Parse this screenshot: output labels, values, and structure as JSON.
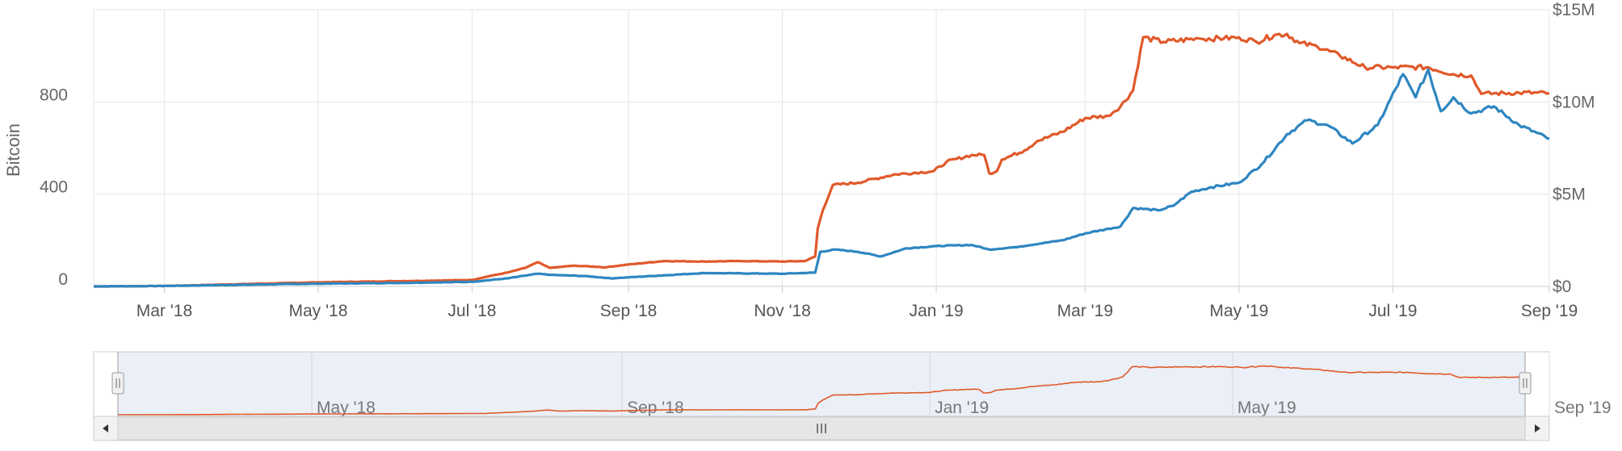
{
  "chart_data": {
    "type": "line",
    "y_left": {
      "label": "Bitcoin",
      "min": 0,
      "max": 1200,
      "ticks": [
        "0",
        "400",
        "800"
      ],
      "tick_values": [
        0,
        400,
        800
      ]
    },
    "y_right": {
      "min": 0,
      "max": 15000000,
      "ticks": [
        "$0",
        "$5M",
        "$10M",
        "$15M"
      ],
      "tick_values": [
        0,
        5000000,
        10000000,
        15000000
      ]
    },
    "x_range": [
      "2018-02-01",
      "2019-09-01"
    ],
    "x_ticks": [
      {
        "label": "Mar '18",
        "date": "2018-03-01"
      },
      {
        "label": "May '18",
        "date": "2018-05-01"
      },
      {
        "label": "Jul '18",
        "date": "2018-07-01"
      },
      {
        "label": "Sep '18",
        "date": "2018-09-01"
      },
      {
        "label": "Nov '18",
        "date": "2018-11-01"
      },
      {
        "label": "Jan '19",
        "date": "2019-01-01"
      },
      {
        "label": "Mar '19",
        "date": "2019-03-01"
      },
      {
        "label": "May '19",
        "date": "2019-05-01"
      },
      {
        "label": "Jul '19",
        "date": "2019-07-01"
      },
      {
        "label": "Sep '19",
        "date": "2019-09-01"
      }
    ],
    "grid": true,
    "legend": "none",
    "series": [
      {
        "axis": "left",
        "color": "#e0592a",
        "points": [
          [
            "2018-02-01",
            0
          ],
          [
            "2018-03-01",
            2
          ],
          [
            "2018-04-01",
            10
          ],
          [
            "2018-05-01",
            18
          ],
          [
            "2018-05-15",
            20
          ],
          [
            "2018-06-15",
            25
          ],
          [
            "2018-07-01",
            28
          ],
          [
            "2018-07-08",
            45
          ],
          [
            "2018-07-15",
            60
          ],
          [
            "2018-07-22",
            80
          ],
          [
            "2018-07-27",
            105
          ],
          [
            "2018-07-30",
            90
          ],
          [
            "2018-08-01",
            80
          ],
          [
            "2018-08-10",
            90
          ],
          [
            "2018-08-20",
            85
          ],
          [
            "2018-08-22",
            82
          ],
          [
            "2018-09-01",
            95
          ],
          [
            "2018-09-15",
            110
          ],
          [
            "2018-10-01",
            108
          ],
          [
            "2018-10-15",
            110
          ],
          [
            "2018-11-01",
            108
          ],
          [
            "2018-11-10",
            110
          ],
          [
            "2018-11-14",
            130
          ],
          [
            "2018-11-15",
            250
          ],
          [
            "2018-11-17",
            330
          ],
          [
            "2018-11-21",
            440
          ],
          [
            "2018-12-01",
            450
          ],
          [
            "2018-12-15",
            485
          ],
          [
            "2018-12-31",
            500
          ],
          [
            "2019-01-05",
            540
          ],
          [
            "2019-01-15",
            570
          ],
          [
            "2019-01-20",
            570
          ],
          [
            "2019-01-22",
            490
          ],
          [
            "2019-01-25",
            500
          ],
          [
            "2019-01-27",
            550
          ],
          [
            "2019-02-05",
            590
          ],
          [
            "2019-02-10",
            630
          ],
          [
            "2019-02-20",
            670
          ],
          [
            "2019-03-01",
            730
          ],
          [
            "2019-03-10",
            740
          ],
          [
            "2019-03-15",
            780
          ],
          [
            "2019-03-20",
            850
          ],
          [
            "2019-03-24",
            1080
          ],
          [
            "2019-04-01",
            1060
          ],
          [
            "2019-04-15",
            1075
          ],
          [
            "2019-04-25",
            1075
          ],
          [
            "2019-05-01",
            1080
          ],
          [
            "2019-05-08",
            1060
          ],
          [
            "2019-05-15",
            1090
          ],
          [
            "2019-05-20",
            1095
          ],
          [
            "2019-05-25",
            1055
          ],
          [
            "2019-06-01",
            1040
          ],
          [
            "2019-06-10",
            1000
          ],
          [
            "2019-06-20",
            950
          ],
          [
            "2019-07-01",
            950
          ],
          [
            "2019-07-15",
            950
          ],
          [
            "2019-07-25",
            920
          ],
          [
            "2019-08-01",
            915
          ],
          [
            "2019-08-05",
            835
          ],
          [
            "2019-08-20",
            840
          ],
          [
            "2019-09-01",
            838
          ]
        ]
      },
      {
        "axis": "left",
        "color": "#2e86c1",
        "points": [
          [
            "2018-02-01",
            0
          ],
          [
            "2018-03-01",
            2
          ],
          [
            "2018-05-01",
            12
          ],
          [
            "2018-06-01",
            15
          ],
          [
            "2018-07-01",
            20
          ],
          [
            "2018-07-15",
            35
          ],
          [
            "2018-07-27",
            55
          ],
          [
            "2018-08-01",
            50
          ],
          [
            "2018-08-15",
            45
          ],
          [
            "2018-08-25",
            35
          ],
          [
            "2018-09-10",
            45
          ],
          [
            "2018-10-01",
            58
          ],
          [
            "2018-11-01",
            55
          ],
          [
            "2018-11-14",
            60
          ],
          [
            "2018-11-16",
            150
          ],
          [
            "2018-11-22",
            160
          ],
          [
            "2018-12-01",
            150
          ],
          [
            "2018-12-10",
            130
          ],
          [
            "2018-12-20",
            165
          ],
          [
            "2019-01-01",
            175
          ],
          [
            "2019-01-15",
            180
          ],
          [
            "2019-01-22",
            160
          ],
          [
            "2019-02-01",
            170
          ],
          [
            "2019-02-20",
            200
          ],
          [
            "2019-03-01",
            230
          ],
          [
            "2019-03-15",
            260
          ],
          [
            "2019-03-20",
            340
          ],
          [
            "2019-03-30",
            330
          ],
          [
            "2019-04-05",
            350
          ],
          [
            "2019-04-12",
            410
          ],
          [
            "2019-04-20",
            430
          ],
          [
            "2019-05-01",
            450
          ],
          [
            "2019-05-10",
            530
          ],
          [
            "2019-05-20",
            660
          ],
          [
            "2019-05-28",
            720
          ],
          [
            "2019-06-05",
            700
          ],
          [
            "2019-06-15",
            620
          ],
          [
            "2019-06-25",
            700
          ],
          [
            "2019-07-05",
            920
          ],
          [
            "2019-07-10",
            820
          ],
          [
            "2019-07-15",
            940
          ],
          [
            "2019-07-20",
            760
          ],
          [
            "2019-07-25",
            820
          ],
          [
            "2019-08-01",
            750
          ],
          [
            "2019-08-10",
            780
          ],
          [
            "2019-08-20",
            700
          ],
          [
            "2019-09-01",
            640
          ]
        ]
      }
    ],
    "navigator": {
      "x_ticks": [
        {
          "label": "May '18",
          "date": "2018-05-01"
        },
        {
          "label": "Sep '18",
          "date": "2018-09-01"
        },
        {
          "label": "Jan '19",
          "date": "2019-01-01"
        },
        {
          "label": "May '19",
          "date": "2019-05-01"
        },
        {
          "label": "Sep '19",
          "date": "2019-09-01"
        }
      ],
      "selection": [
        "2018-02-01",
        "2019-09-01"
      ]
    }
  }
}
